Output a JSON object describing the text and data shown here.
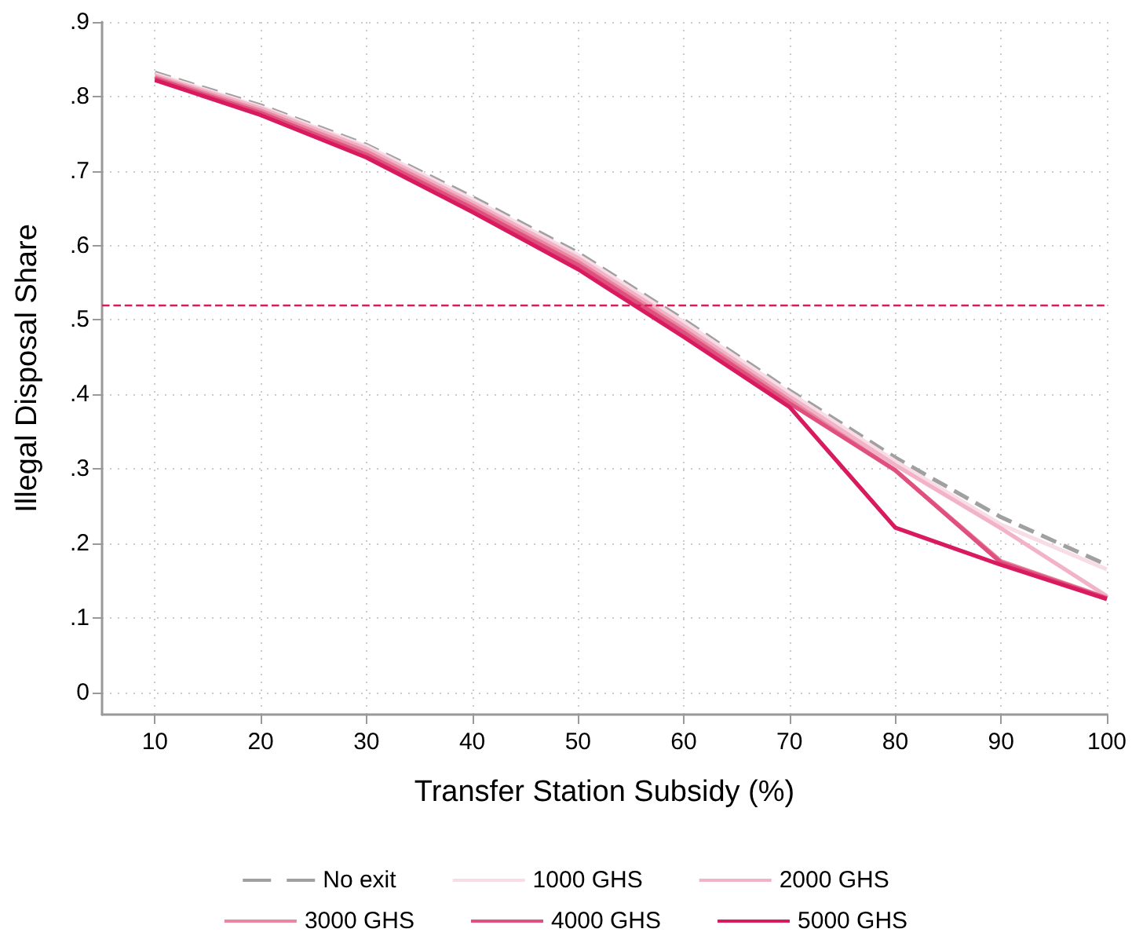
{
  "chart_data": {
    "type": "line",
    "xlabel": "Transfer Station Subsidy (%)",
    "ylabel": "Illegal Disposal Share",
    "x": [
      10,
      20,
      30,
      40,
      50,
      60,
      70,
      80,
      90,
      100
    ],
    "series": [
      {
        "name": "No exit",
        "color": "#a0a0a0",
        "line_style": "dashed",
        "values": [
          0.832,
          0.788,
          0.735,
          0.665,
          0.59,
          0.5,
          0.405,
          0.315,
          0.235,
          0.171
        ]
      },
      {
        "name": "1000 GHS",
        "color": "#f8dde6",
        "values": [
          0.83,
          0.786,
          0.733,
          0.662,
          0.587,
          0.497,
          0.402,
          0.31,
          0.225,
          0.165
        ]
      },
      {
        "name": "2000 GHS",
        "color": "#f2b3c8",
        "values": [
          0.828,
          0.784,
          0.73,
          0.658,
          0.583,
          0.492,
          0.397,
          0.305,
          0.22,
          0.129
        ]
      },
      {
        "name": "3000 GHS",
        "color": "#e8879f",
        "values": [
          0.826,
          0.781,
          0.726,
          0.654,
          0.578,
          0.487,
          0.392,
          0.298,
          0.176,
          0.127
        ]
      },
      {
        "name": "4000 GHS",
        "color": "#e0507f",
        "values": [
          0.824,
          0.778,
          0.722,
          0.65,
          0.574,
          0.483,
          0.388,
          0.298,
          0.174,
          0.126
        ]
      },
      {
        "name": "5000 GHS",
        "color": "#d81b5e",
        "values": [
          0.822,
          0.775,
          0.718,
          0.645,
          0.568,
          0.477,
          0.383,
          0.221,
          0.171,
          0.125
        ]
      }
    ],
    "xlim": [
      5,
      100
    ],
    "xticks": [
      10,
      20,
      30,
      40,
      50,
      60,
      70,
      80,
      90,
      100
    ],
    "ylim": [
      -0.03,
      0.9
    ],
    "yticks": [
      {
        "value": 0,
        "label": "0"
      },
      {
        "value": 0.1,
        "label": ".1"
      },
      {
        "value": 0.2,
        "label": ".2"
      },
      {
        "value": 0.3,
        "label": ".3"
      },
      {
        "value": 0.4,
        "label": ".4"
      },
      {
        "value": 0.5,
        "label": ".5"
      },
      {
        "value": 0.6,
        "label": ".6"
      },
      {
        "value": 0.7,
        "label": ".7"
      },
      {
        "value": 0.8,
        "label": ".8"
      },
      {
        "value": 0.9,
        "label": ".9"
      }
    ],
    "ref_lines": [
      {
        "axis": "y",
        "value": 0.52,
        "color": "#d81b5e",
        "line_style": "dashed"
      }
    ],
    "grid": true,
    "legend": "bottom",
    "marker": "none",
    "line_style": "solid"
  }
}
